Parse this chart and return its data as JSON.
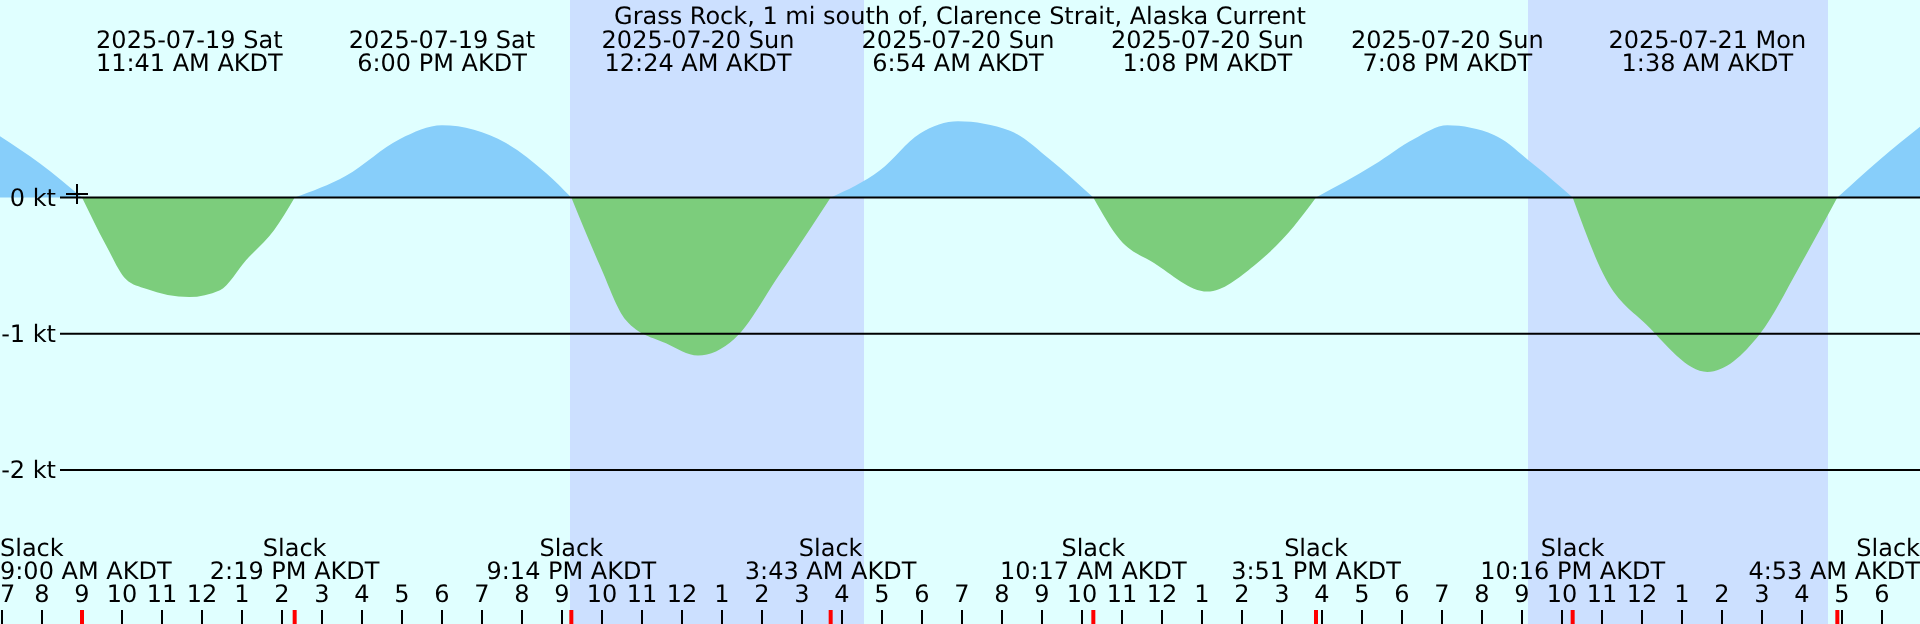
{
  "chart_data": {
    "type": "area",
    "title": "Grass Rock, 1 mi south of, Clarence Strait, Alaska Current",
    "x": [
      "2025-07-19T06:57",
      "2025-07-19T07:57",
      "2025-07-19T09:00",
      "2025-07-19T09:36",
      "2025-07-19T10:06",
      "2025-07-19T10:36",
      "2025-07-19T11:41",
      "2025-07-19T12:27",
      "2025-07-19T13:06",
      "2025-07-19T13:48",
      "2025-07-19T14:19",
      "2025-07-19T15:36",
      "2025-07-19T16:57",
      "2025-07-19T18:00",
      "2025-07-19T19:36",
      "2025-07-19T20:36",
      "2025-07-19T21:14",
      "2025-07-19T21:57",
      "2025-07-19T22:36",
      "2025-07-19T23:36",
      "2025-07-20T00:24",
      "2025-07-20T01:18",
      "2025-07-20T02:27",
      "2025-07-20T03:43",
      "2025-07-20T04:57",
      "2025-07-20T05:57",
      "2025-07-20T06:54",
      "2025-07-20T08:12",
      "2025-07-20T09:12",
      "2025-07-20T10:17",
      "2025-07-20T10:57",
      "2025-07-20T11:48",
      "2025-07-20T13:08",
      "2025-07-20T14:18",
      "2025-07-20T15:18",
      "2025-07-20T15:51",
      "2025-07-20T17:18",
      "2025-07-20T18:18",
      "2025-07-20T19:08",
      "2025-07-20T20:18",
      "2025-07-20T21:18",
      "2025-07-20T22:16",
      "2025-07-20T23:06",
      "2025-07-21T00:06",
      "2025-07-21T01:38",
      "2025-07-21T02:57",
      "2025-07-21T03:57",
      "2025-07-21T04:53",
      "2025-07-21T05:57",
      "2025-07-21T06:57"
    ],
    "series": [
      {
        "color": "#87cefa",
        "values": [
          0.45,
          0.25,
          0,
          null,
          null,
          null,
          null,
          null,
          null,
          null,
          0,
          0.16,
          0.43,
          0.53,
          0.4,
          0.18,
          0,
          null,
          null,
          null,
          null,
          null,
          null,
          0,
          0.2,
          0.47,
          0.56,
          0.49,
          0.28,
          0,
          null,
          null,
          null,
          null,
          null,
          0,
          0.24,
          0.43,
          0.53,
          0.46,
          0.24,
          0,
          null,
          null,
          null,
          null,
          null,
          0,
          0.28,
          0.52
        ]
      },
      {
        "color": "#7ccd7c",
        "values": [
          null,
          null,
          0,
          -0.35,
          -0.6,
          -0.67,
          -0.73,
          -0.68,
          -0.46,
          -0.24,
          0,
          null,
          null,
          null,
          null,
          null,
          0,
          -0.5,
          -0.9,
          -1.07,
          -1.16,
          -1.04,
          -0.56,
          0,
          null,
          null,
          null,
          null,
          null,
          0,
          -0.31,
          -0.48,
          -0.69,
          -0.5,
          -0.21,
          0,
          null,
          null,
          null,
          null,
          null,
          0,
          -0.6,
          -0.93,
          -1.28,
          -1,
          -0.5,
          0,
          null,
          null
        ]
      }
    ],
    "xlim": [
      "2025-07-19T06:57",
      "2025-07-21T06:57"
    ],
    "xticks": [
      {
        "value": "2025-07-19T07:00",
        "label": "7"
      },
      {
        "value": "2025-07-19T08:00",
        "label": "8"
      },
      {
        "value": "2025-07-19T09:00",
        "label": "9"
      },
      {
        "value": "2025-07-19T10:00",
        "label": "10"
      },
      {
        "value": "2025-07-19T11:00",
        "label": "11"
      },
      {
        "value": "2025-07-19T12:00",
        "label": "12"
      },
      {
        "value": "2025-07-19T13:00",
        "label": "1"
      },
      {
        "value": "2025-07-19T14:00",
        "label": "2"
      },
      {
        "value": "2025-07-19T15:00",
        "label": "3"
      },
      {
        "value": "2025-07-19T16:00",
        "label": "4"
      },
      {
        "value": "2025-07-19T17:00",
        "label": "5"
      },
      {
        "value": "2025-07-19T18:00",
        "label": "6"
      },
      {
        "value": "2025-07-19T19:00",
        "label": "7"
      },
      {
        "value": "2025-07-19T20:00",
        "label": "8"
      },
      {
        "value": "2025-07-19T21:00",
        "label": "9"
      },
      {
        "value": "2025-07-19T22:00",
        "label": "10"
      },
      {
        "value": "2025-07-19T23:00",
        "label": "11"
      },
      {
        "value": "2025-07-20T00:00",
        "label": "12"
      },
      {
        "value": "2025-07-20T01:00",
        "label": "1"
      },
      {
        "value": "2025-07-20T02:00",
        "label": "2"
      },
      {
        "value": "2025-07-20T03:00",
        "label": "3"
      },
      {
        "value": "2025-07-20T04:00",
        "label": "4"
      },
      {
        "value": "2025-07-20T05:00",
        "label": "5"
      },
      {
        "value": "2025-07-20T06:00",
        "label": "6"
      },
      {
        "value": "2025-07-20T07:00",
        "label": "7"
      },
      {
        "value": "2025-07-20T08:00",
        "label": "8"
      },
      {
        "value": "2025-07-20T09:00",
        "label": "9"
      },
      {
        "value": "2025-07-20T10:00",
        "label": "10"
      },
      {
        "value": "2025-07-20T11:00",
        "label": "11"
      },
      {
        "value": "2025-07-20T12:00",
        "label": "12"
      },
      {
        "value": "2025-07-20T13:00",
        "label": "1"
      },
      {
        "value": "2025-07-20T14:00",
        "label": "2"
      },
      {
        "value": "2025-07-20T15:00",
        "label": "3"
      },
      {
        "value": "2025-07-20T16:00",
        "label": "4"
      },
      {
        "value": "2025-07-20T17:00",
        "label": "5"
      },
      {
        "value": "2025-07-20T18:00",
        "label": "6"
      },
      {
        "value": "2025-07-20T19:00",
        "label": "7"
      },
      {
        "value": "2025-07-20T20:00",
        "label": "8"
      },
      {
        "value": "2025-07-20T21:00",
        "label": "9"
      },
      {
        "value": "2025-07-20T22:00",
        "label": "10"
      },
      {
        "value": "2025-07-20T23:00",
        "label": "11"
      },
      {
        "value": "2025-07-21T00:00",
        "label": "12"
      },
      {
        "value": "2025-07-21T01:00",
        "label": "1"
      },
      {
        "value": "2025-07-21T02:00",
        "label": "2"
      },
      {
        "value": "2025-07-21T03:00",
        "label": "3"
      },
      {
        "value": "2025-07-21T04:00",
        "label": "4"
      },
      {
        "value": "2025-07-21T05:00",
        "label": "5"
      },
      {
        "value": "2025-07-21T06:00",
        "label": "6"
      }
    ],
    "ylim": [
      -3.13,
      1.45
    ],
    "yticks": [
      {
        "value": 0,
        "label": "0 kt"
      },
      {
        "value": -1,
        "label": "-1 kt"
      },
      {
        "value": -2,
        "label": "-2 kt"
      }
    ],
    "grid": "y",
    "bands": [
      {
        "axis": "x",
        "from": "2025-07-19T21:12",
        "to": "2025-07-20T04:33",
        "color": "#cce0ff"
      },
      {
        "axis": "x",
        "from": "2025-07-20T21:09",
        "to": "2025-07-21T04:39",
        "color": "#cce0ff"
      }
    ],
    "annotations": [
      "2025-07-19 Sat\n11:41 AM AKDT",
      "2025-07-19 Sat\n6:00 PM AKDT",
      "2025-07-20 Sun\n12:24 AM AKDT",
      "2025-07-20 Sun\n6:54 AM AKDT",
      "2025-07-20 Sun\n1:08 PM AKDT",
      "2025-07-20 Sun\n7:08 PM AKDT",
      "2025-07-21 Mon\n1:38 AM AKDT",
      "Slack\n9:00 AM AKDT",
      "Slack\n2:19 PM AKDT",
      "Slack\n9:14 PM AKDT",
      "Slack\n3:43 AM AKDT",
      "Slack\n10:17 AM AKDT",
      "Slack\n3:51 PM AKDT",
      "Slack\n10:16 PM AKDT",
      "Slack\n4:53 AM AKDT"
    ]
  }
}
